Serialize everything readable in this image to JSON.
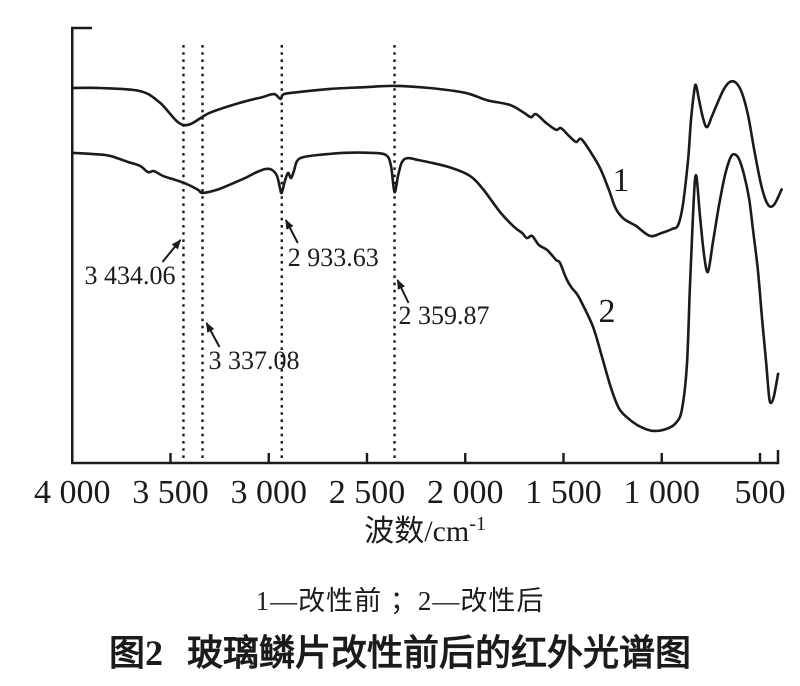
{
  "figure": {
    "legend_text": "1—改性前 ；2—改性后",
    "figure_label": "图2",
    "caption": "玻璃鳞片改性前后的红外光谱图"
  },
  "colors": {
    "ink": "#1b1b1b",
    "background": "#ffffff"
  },
  "chart_data": {
    "type": "line",
    "title": "图2 玻璃鳞片改性前后的红外光谱图",
    "xlabel": "波数/cm⁻¹",
    "ylabel": "",
    "grid": false,
    "legend_position": "below",
    "x_axis": {
      "max": 4000,
      "min": 408,
      "direction": "decreasing-to-right",
      "ticks": [
        4000,
        3500,
        3000,
        2500,
        2000,
        1500,
        1000,
        500
      ],
      "tick_labels": [
        "4 000",
        "3 500",
        "3 000",
        "2 500",
        "2 000",
        "1 500",
        "1 000",
        "500"
      ]
    },
    "y_axis": {
      "visible_scale": false,
      "units": "arbitrary intensity 0-100"
    },
    "series": [
      {
        "name": "1",
        "label": "改性前",
        "points": [
          [
            4000,
            86.2
          ],
          [
            3860,
            86.2
          ],
          [
            3655,
            85.5
          ],
          [
            3553,
            82.8
          ],
          [
            3434,
            77.7
          ],
          [
            3300,
            80.5
          ],
          [
            3146,
            82.8
          ],
          [
            3034,
            84.1
          ],
          [
            2973,
            84.8
          ],
          [
            2940,
            83.7
          ],
          [
            2923,
            84.8
          ],
          [
            2841,
            85.3
          ],
          [
            2688,
            86.0
          ],
          [
            2510,
            86.4
          ],
          [
            2358,
            86.7
          ],
          [
            2180,
            86.2
          ],
          [
            2001,
            85.1
          ],
          [
            1889,
            83.4
          ],
          [
            1772,
            82.3
          ],
          [
            1701,
            80.5
          ],
          [
            1665,
            79.5
          ],
          [
            1640,
            80.2
          ],
          [
            1589,
            78.2
          ],
          [
            1538,
            76.6
          ],
          [
            1513,
            77.0
          ],
          [
            1472,
            75.2
          ],
          [
            1436,
            73.8
          ],
          [
            1411,
            74.5
          ],
          [
            1365,
            71.7
          ],
          [
            1314,
            67.8
          ],
          [
            1269,
            62.8
          ],
          [
            1233,
            58.4
          ],
          [
            1192,
            56.1
          ],
          [
            1131,
            54.5
          ],
          [
            1060,
            52.2
          ],
          [
            999,
            52.9
          ],
          [
            948,
            53.8
          ],
          [
            917,
            54.7
          ],
          [
            892,
            59.5
          ],
          [
            866,
            69.7
          ],
          [
            851,
            78.9
          ],
          [
            836,
            85.1
          ],
          [
            826,
            86.9
          ],
          [
            810,
            83.4
          ],
          [
            790,
            79.3
          ],
          [
            770,
            77.2
          ],
          [
            744,
            79.8
          ],
          [
            714,
            83.0
          ],
          [
            683,
            86.0
          ],
          [
            653,
            87.6
          ],
          [
            622,
            87.4
          ],
          [
            592,
            85.1
          ],
          [
            561,
            80.0
          ],
          [
            531,
            72.4
          ],
          [
            500,
            65.1
          ],
          [
            475,
            60.9
          ],
          [
            454,
            59.1
          ],
          [
            434,
            59.1
          ],
          [
            414,
            60.5
          ],
          [
            390,
            62.9
          ]
        ]
      },
      {
        "name": "2",
        "label": "改性后",
        "points": [
          [
            4000,
            71.3
          ],
          [
            3833,
            70.8
          ],
          [
            3772,
            70.1
          ],
          [
            3716,
            69.2
          ],
          [
            3655,
            68.3
          ],
          [
            3615,
            66.9
          ],
          [
            3584,
            67.1
          ],
          [
            3538,
            66.0
          ],
          [
            3477,
            65.1
          ],
          [
            3416,
            64.1
          ],
          [
            3360,
            62.8
          ],
          [
            3337,
            62.1
          ],
          [
            3263,
            62.8
          ],
          [
            3192,
            64.1
          ],
          [
            3121,
            65.5
          ],
          [
            3060,
            66.9
          ],
          [
            3014,
            67.6
          ],
          [
            2984,
            67.4
          ],
          [
            2958,
            66.0
          ],
          [
            2943,
            63.2
          ],
          [
            2934,
            62.1
          ],
          [
            2918,
            64.8
          ],
          [
            2902,
            66.7
          ],
          [
            2887,
            65.5
          ],
          [
            2872,
            67.1
          ],
          [
            2856,
            69.4
          ],
          [
            2826,
            70.3
          ],
          [
            2750,
            70.8
          ],
          [
            2612,
            71.3
          ],
          [
            2485,
            71.3
          ],
          [
            2404,
            70.8
          ],
          [
            2378,
            68.3
          ],
          [
            2360,
            62.3
          ],
          [
            2342,
            66.0
          ],
          [
            2322,
            69.2
          ],
          [
            2291,
            70.1
          ],
          [
            2245,
            69.7
          ],
          [
            2169,
            69.0
          ],
          [
            2067,
            67.8
          ],
          [
            1976,
            66.0
          ],
          [
            1910,
            63.0
          ],
          [
            1823,
            57.7
          ],
          [
            1752,
            54.3
          ],
          [
            1711,
            52.9
          ],
          [
            1686,
            51.7
          ],
          [
            1660,
            52.2
          ],
          [
            1625,
            50.1
          ],
          [
            1584,
            49.0
          ],
          [
            1538,
            46.7
          ],
          [
            1518,
            46.0
          ],
          [
            1487,
            42.5
          ],
          [
            1462,
            40.5
          ],
          [
            1436,
            39.1
          ],
          [
            1411,
            37.2
          ],
          [
            1350,
            31.3
          ],
          [
            1304,
            24.4
          ],
          [
            1258,
            17.2
          ],
          [
            1218,
            12.6
          ],
          [
            1172,
            10.3
          ],
          [
            1116,
            8.5
          ],
          [
            1050,
            7.4
          ],
          [
            979,
            7.8
          ],
          [
            928,
            9.2
          ],
          [
            897,
            12.4
          ],
          [
            872,
            22.5
          ],
          [
            857,
            39.8
          ],
          [
            841,
            57.0
          ],
          [
            826,
            66.2
          ],
          [
            806,
            57.0
          ],
          [
            786,
            48.3
          ],
          [
            765,
            43.9
          ],
          [
            740,
            50.6
          ],
          [
            709,
            59.1
          ],
          [
            679,
            66.0
          ],
          [
            653,
            69.9
          ],
          [
            633,
            71.0
          ],
          [
            607,
            69.9
          ],
          [
            582,
            66.4
          ],
          [
            556,
            60.9
          ],
          [
            536,
            53.8
          ],
          [
            510,
            44.1
          ],
          [
            490,
            33.3
          ],
          [
            470,
            23.7
          ],
          [
            454,
            15.4
          ],
          [
            444,
            13.8
          ],
          [
            429,
            15.4
          ],
          [
            408,
            20.5
          ]
        ]
      }
    ],
    "annotations": [
      {
        "wavenumber": 3434.06,
        "label": "3 434.06"
      },
      {
        "wavenumber": 3337.08,
        "label": "3 337.08"
      },
      {
        "wavenumber": 2933.63,
        "label": "2 933.63"
      },
      {
        "wavenumber": 2359.87,
        "label": "2 359.87"
      }
    ]
  }
}
